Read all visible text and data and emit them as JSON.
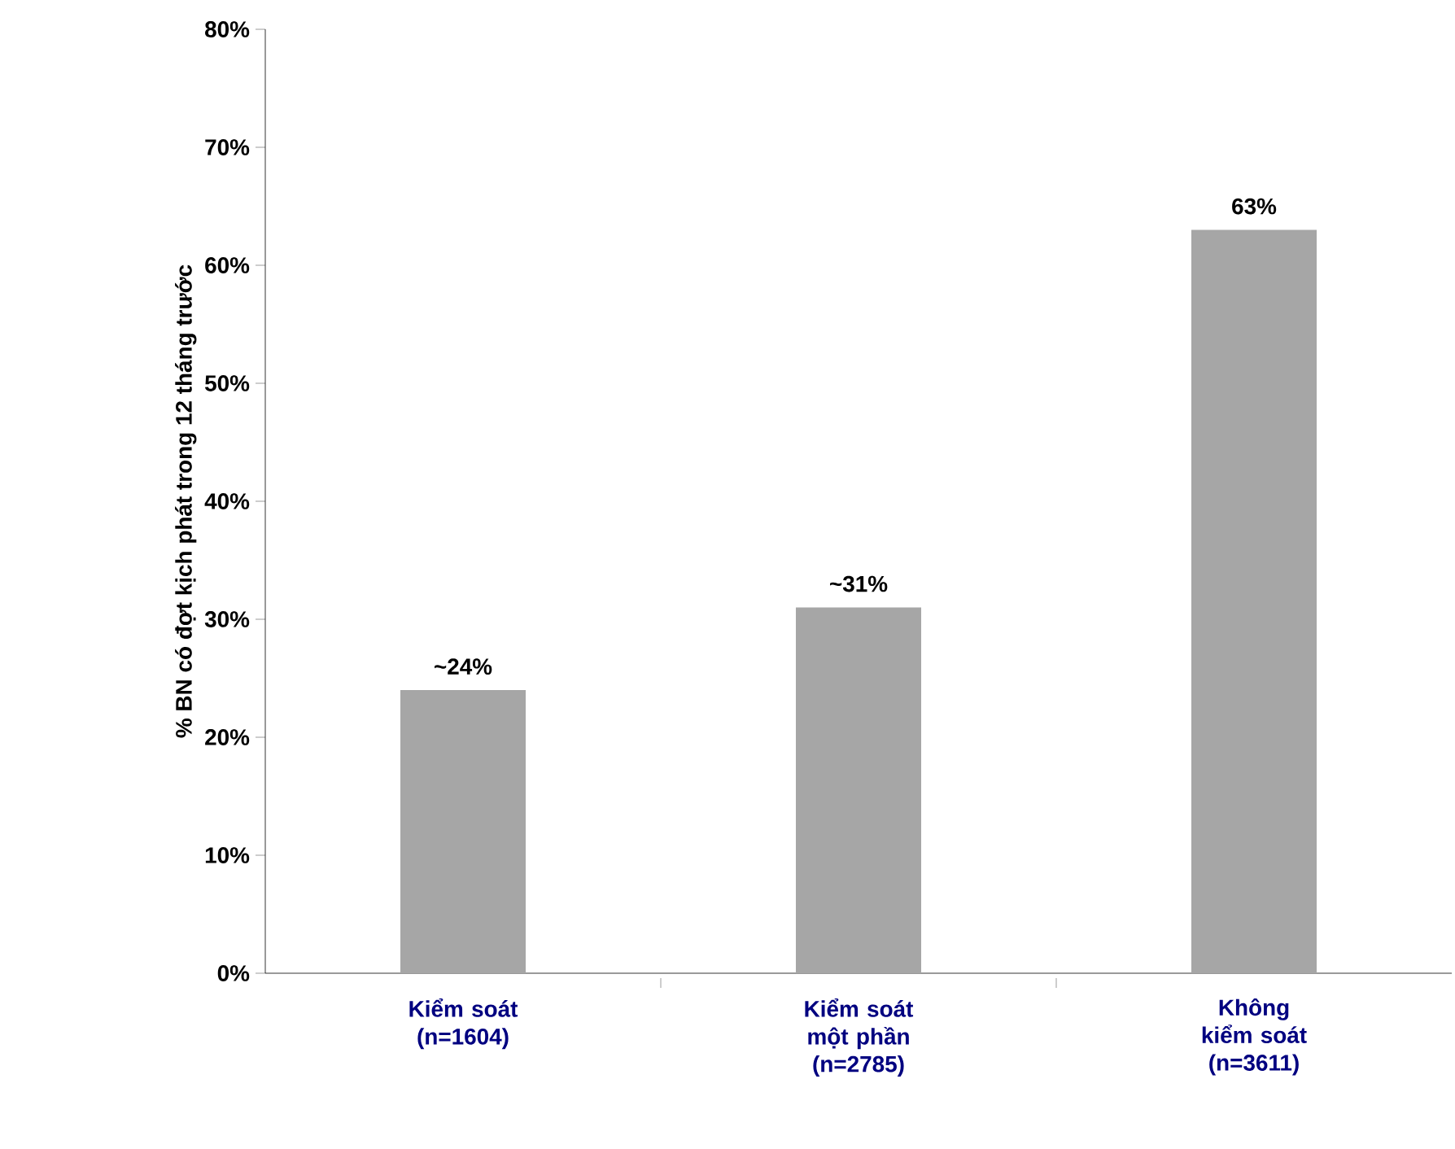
{
  "chart_data": {
    "type": "bar",
    "ylabel": "% BN có đợt kịch phát trong 12 tháng trước",
    "categories": [
      "Kiểm soát (n=1604)",
      "Kiểm soát một phần (n=2785)",
      "Không kiểm soát (n=3611)"
    ],
    "values": [
      24,
      31,
      63
    ],
    "value_labels": [
      "~24%",
      "~31%",
      "63%"
    ],
    "color": "#a6a6a6",
    "ylim": [
      0,
      80
    ],
    "yticks": [
      {
        "value": 0,
        "label": "0%"
      },
      {
        "value": 10,
        "label": "10%"
      },
      {
        "value": 20,
        "label": "20%"
      },
      {
        "value": 30,
        "label": "30%"
      },
      {
        "value": 40,
        "label": "40%"
      },
      {
        "value": 50,
        "label": "50%"
      },
      {
        "value": 60,
        "label": "60%"
      },
      {
        "value": 70,
        "label": "70%"
      },
      {
        "value": 80,
        "label": "80%"
      }
    ],
    "grid": false
  }
}
